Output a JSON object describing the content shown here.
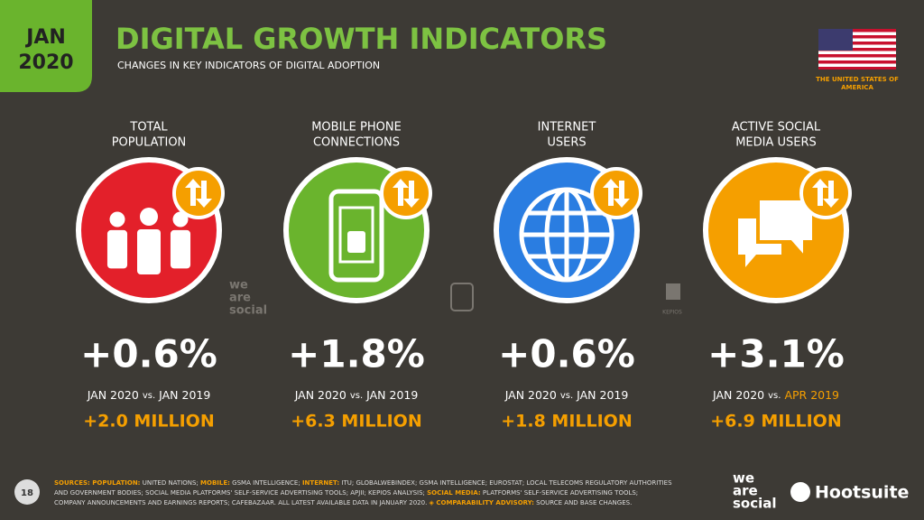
{
  "badge": {
    "month": "JAN",
    "year": "2020"
  },
  "header": {
    "title": "DIGITAL GROWTH INDICATORS",
    "subtitle": "CHANGES IN KEY INDICATORS OF DIGITAL ADOPTION"
  },
  "country": [
    "THE UNITED STATES OF",
    "AMERICA"
  ],
  "comparison_word": "vs.",
  "indicators": [
    {
      "label": [
        "TOTAL",
        "POPULATION"
      ],
      "icon": "people",
      "color": "#e3202a",
      "change": "+0.6%",
      "period_from": "JAN 2020",
      "period_to": "JAN 2019",
      "period_to_highlight": false,
      "absolute": "+2.0 MILLION"
    },
    {
      "label": [
        "MOBILE PHONE",
        "CONNECTIONS"
      ],
      "icon": "phone",
      "color": "#6ab42d",
      "change": "+1.8%",
      "period_from": "JAN 2020",
      "period_to": "JAN 2019",
      "period_to_highlight": false,
      "absolute": "+6.3 MILLION"
    },
    {
      "label": [
        "INTERNET",
        "USERS"
      ],
      "icon": "globe",
      "color": "#2a7de1",
      "change": "+0.6%",
      "period_from": "JAN 2020",
      "period_to": "JAN 2019",
      "period_to_highlight": false,
      "absolute": "+1.8 MILLION"
    },
    {
      "label": [
        "ACTIVE SOCIAL",
        "MEDIA USERS"
      ],
      "icon": "chat",
      "color": "#f59f00",
      "change": "+3.1%",
      "period_from": "JAN 2020",
      "period_to": "APR 2019",
      "period_to_highlight": true,
      "absolute": "+6.9 MILLION"
    }
  ],
  "watermarks": {
    "wearesocial": [
      "we",
      "are",
      "social"
    ],
    "kepios": "KEPIOS"
  },
  "footer": {
    "page": "18",
    "sources": [
      [
        {
          "text": "SOURCES: POPULATION:",
          "highlight": true
        },
        {
          "text": " UNITED NATIONS; ",
          "highlight": false
        },
        {
          "text": "MOBILE:",
          "highlight": true
        },
        {
          "text": " GSMA INTELLIGENCE; ",
          "highlight": false
        },
        {
          "text": "INTERNET:",
          "highlight": true
        },
        {
          "text": " ITU; GLOBALWEBINDEX; GSMA INTELLIGENCE; EUROSTAT; LOCAL TELECOMS REGULATORY AUTHORITIES",
          "highlight": false
        }
      ],
      [
        {
          "text": "AND GOVERNMENT BODIES; SOCIAL MEDIA PLATFORMS' SELF-SERVICE ADVERTISING TOOLS; APJII; KEPIOS ANALYSIS; ",
          "highlight": false
        },
        {
          "text": "SOCIAL MEDIA:",
          "highlight": true
        },
        {
          "text": " PLATFORMS' SELF-SERVICE ADVERTISING TOOLS;",
          "highlight": false
        }
      ],
      [
        {
          "text": "COMPANY ANNOUNCEMENTS AND EARNINGS REPORTS; CAFEBAZAAR. ALL LATEST AVAILABLE DATA IN JANUARY 2020. ",
          "highlight": false
        },
        {
          "text": "◈ COMPARABILITY ADVISORY:",
          "highlight": true
        },
        {
          "text": " SOURCE AND BASE CHANGES.",
          "highlight": false
        }
      ]
    ],
    "logo_wearesocial": [
      "we",
      "are",
      "social"
    ],
    "logo_hootsuite": "Hootsuite"
  }
}
